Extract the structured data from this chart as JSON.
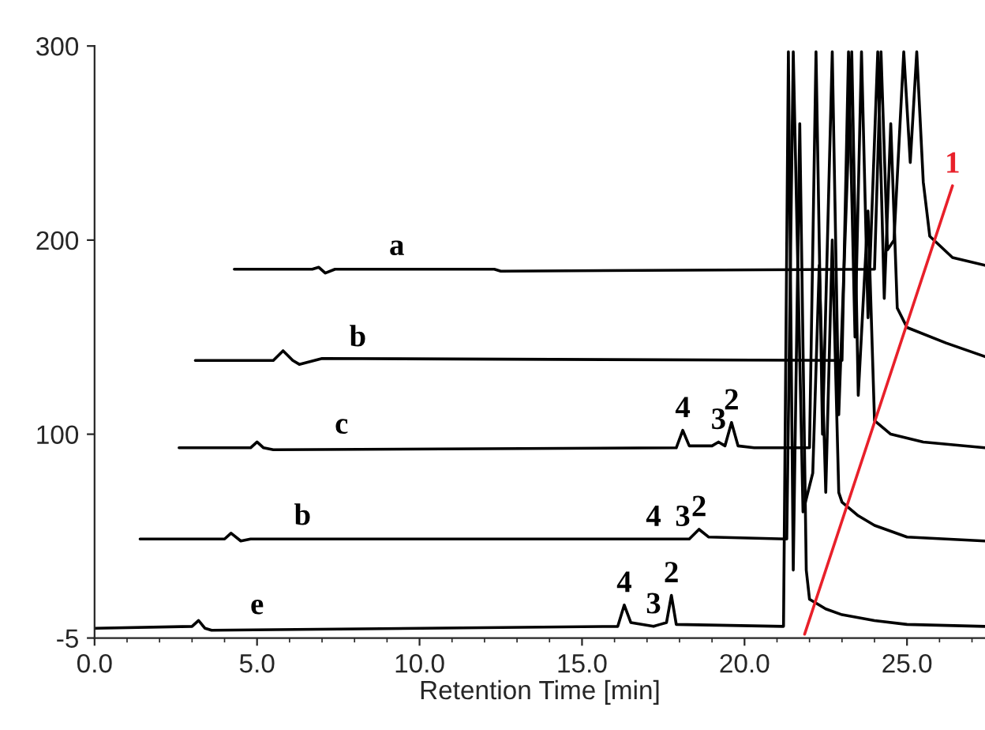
{
  "chart_data": {
    "type": "line",
    "xlabel": "Retention Time [min]",
    "xlim": [
      0,
      27.4
    ],
    "ylim": [
      -5,
      300
    ],
    "xticks": [
      {
        "value": 0,
        "label": "0.0"
      },
      {
        "value": 5,
        "label": "5.0"
      },
      {
        "value": 10,
        "label": "10.0"
      },
      {
        "value": 15,
        "label": "15.0"
      },
      {
        "value": 20,
        "label": "20.0"
      },
      {
        "value": 25,
        "label": "25.0"
      }
    ],
    "yticks": [
      -5,
      100,
      200,
      300
    ],
    "grid": false,
    "legend": false,
    "series": [
      {
        "name": "a",
        "color": "#000000",
        "x": [
          4.3,
          6.7,
          6.9,
          7.1,
          7.4,
          12.3,
          12.5,
          24.0,
          24.2,
          24.4,
          24.6,
          24.9,
          25.1,
          25.3,
          25.5,
          25.7,
          26.4,
          27.4
        ],
        "values": [
          185,
          185,
          186,
          183,
          185,
          185,
          184,
          185,
          297,
          195,
          200,
          297,
          240,
          297,
          230,
          202,
          191,
          187
        ]
      },
      {
        "name": "b",
        "color": "#000000",
        "x": [
          3.1,
          5.5,
          5.8,
          6.1,
          6.3,
          7.0,
          23.0,
          23.2,
          23.4,
          23.6,
          23.8,
          24.1,
          24.3,
          24.5,
          24.7,
          25.0,
          26.2,
          27.4
        ],
        "values": [
          138,
          138,
          143,
          138,
          136,
          139,
          138,
          297,
          150,
          297,
          160,
          297,
          170,
          260,
          165,
          155,
          147,
          140
        ]
      },
      {
        "name": "c",
        "color": "#000000",
        "x": [
          2.6,
          4.8,
          5.0,
          5.2,
          5.5,
          17.9,
          18.1,
          18.3,
          19.0,
          19.2,
          19.4,
          19.6,
          19.8,
          20.3,
          22.0,
          22.2,
          22.4,
          22.7,
          22.9,
          23.3,
          23.5,
          23.8,
          24.0,
          24.5,
          25.5,
          27.4
        ],
        "values": [
          93,
          93,
          96,
          93,
          92,
          93,
          102,
          94,
          94,
          96,
          94,
          106,
          94,
          93,
          93,
          297,
          100,
          297,
          110,
          297,
          120,
          215,
          107,
          100,
          96,
          93
        ]
      },
      {
        "name": "b",
        "color": "#000000",
        "x": [
          1.4,
          4.0,
          4.2,
          4.5,
          4.8,
          17.2,
          18.1,
          18.3,
          18.6,
          18.9,
          21.3,
          21.5,
          21.8,
          22.1,
          22.3,
          22.5,
          22.7,
          22.9,
          23.0,
          23.5,
          24.0,
          25.0,
          27.4
        ],
        "values": [
          46,
          46,
          49,
          45,
          46,
          46,
          46,
          46,
          51,
          47,
          46,
          297,
          60,
          80,
          187,
          70,
          200,
          70,
          65,
          58,
          53,
          47,
          45
        ]
      },
      {
        "name": "e",
        "color": "#000000",
        "x": [
          0.0,
          3.0,
          3.2,
          3.4,
          3.6,
          16.1,
          16.3,
          16.5,
          17.2,
          17.4,
          17.6,
          17.75,
          17.9,
          21.2,
          21.35,
          21.5,
          21.7,
          21.9,
          22.0,
          22.5,
          23.0,
          24.0,
          25.0,
          27.4
        ],
        "values": [
          0,
          1,
          4,
          0,
          -1,
          1,
          12,
          3,
          1,
          2,
          3,
          17,
          2,
          1,
          297,
          30,
          260,
          30,
          15,
          10,
          7,
          4,
          2,
          1
        ]
      },
      {
        "color": "#e8202a",
        "x": [
          21.85,
          26.4
        ],
        "values": [
          -3,
          228
        ]
      }
    ],
    "annotations": [
      {
        "text": "1",
        "x": 26.4,
        "y": 228
      },
      {
        "text": "4",
        "x": 18.1,
        "y": 102
      },
      {
        "text": "3",
        "x": 19.2,
        "y": 96
      },
      {
        "text": "2",
        "x": 19.6,
        "y": 106
      },
      {
        "text": "4",
        "x": 17.2,
        "y": 46
      },
      {
        "text": "3",
        "x": 18.1,
        "y": 46
      },
      {
        "text": "2",
        "x": 18.6,
        "y": 51
      },
      {
        "text": "4",
        "x": 16.3,
        "y": 12
      },
      {
        "text": "3",
        "x": 17.2,
        "y": 1
      },
      {
        "text": "2",
        "x": 17.75,
        "y": 17
      }
    ]
  }
}
